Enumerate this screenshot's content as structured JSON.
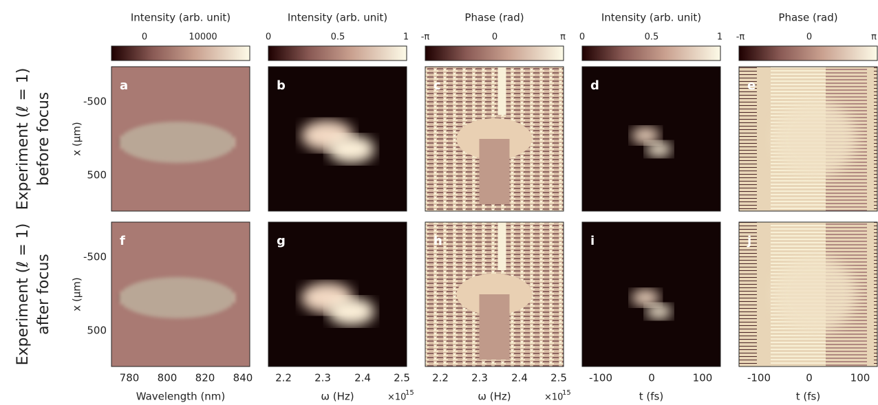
{
  "colorbars": [
    {
      "title": "Intensity (arb. unit)",
      "ticks": [
        "0",
        "10000"
      ]
    },
    {
      "title": "Intensity (arb. unit)",
      "ticks": [
        "0",
        "0.5",
        "1"
      ]
    },
    {
      "title": "Phase (rad)",
      "ticks": [
        "-π",
        "0",
        "π"
      ]
    },
    {
      "title": "Intensity (arb. unit)",
      "ticks": [
        "0",
        "0.5",
        "1"
      ]
    },
    {
      "title": "Phase (rad)",
      "ticks": [
        "-π",
        "0",
        "π"
      ]
    }
  ],
  "rows": [
    {
      "label": "Experiment (ℓ = 1)",
      "sublabel": "before focus",
      "panels": [
        "a",
        "b",
        "c",
        "d",
        "e"
      ]
    },
    {
      "label": "Experiment (ℓ = 1)",
      "sublabel": "after focus",
      "panels": [
        "f",
        "g",
        "h",
        "i",
        "j"
      ]
    }
  ],
  "y_axis": {
    "label": "x (μm)",
    "ticks": [
      "-500",
      "500"
    ]
  },
  "x_axes": [
    {
      "label": "Wavelength (nm)",
      "ticks": [
        "780",
        "800",
        "820",
        "840"
      ]
    },
    {
      "label": "ω (Hz)",
      "ticks": [
        "2.2",
        "2.3",
        "2.4",
        "2.5"
      ],
      "multiplier": "×10",
      "exponent": "15"
    },
    {
      "label": "ω (Hz)",
      "ticks": [
        "2.2",
        "2.3",
        "2.4",
        "2.5"
      ],
      "multiplier": "×10",
      "exponent": "15"
    },
    {
      "label": "t (fs)",
      "ticks": [
        "-100",
        "0",
        "100"
      ]
    },
    {
      "label": "t (fs)",
      "ticks": [
        "-100",
        "0",
        "100"
      ]
    }
  ]
}
